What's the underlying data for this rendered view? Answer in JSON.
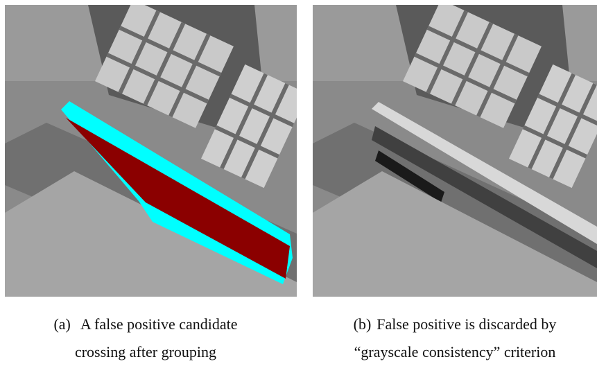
{
  "panels": [
    {
      "label": "(a)",
      "caption_lines": [
        "A false positive candidate",
        "crossing after grouping"
      ]
    },
    {
      "label": "(b)",
      "caption_lines": [
        "False positive is discarded by",
        "“grayscale consistency” criterion"
      ]
    }
  ]
}
